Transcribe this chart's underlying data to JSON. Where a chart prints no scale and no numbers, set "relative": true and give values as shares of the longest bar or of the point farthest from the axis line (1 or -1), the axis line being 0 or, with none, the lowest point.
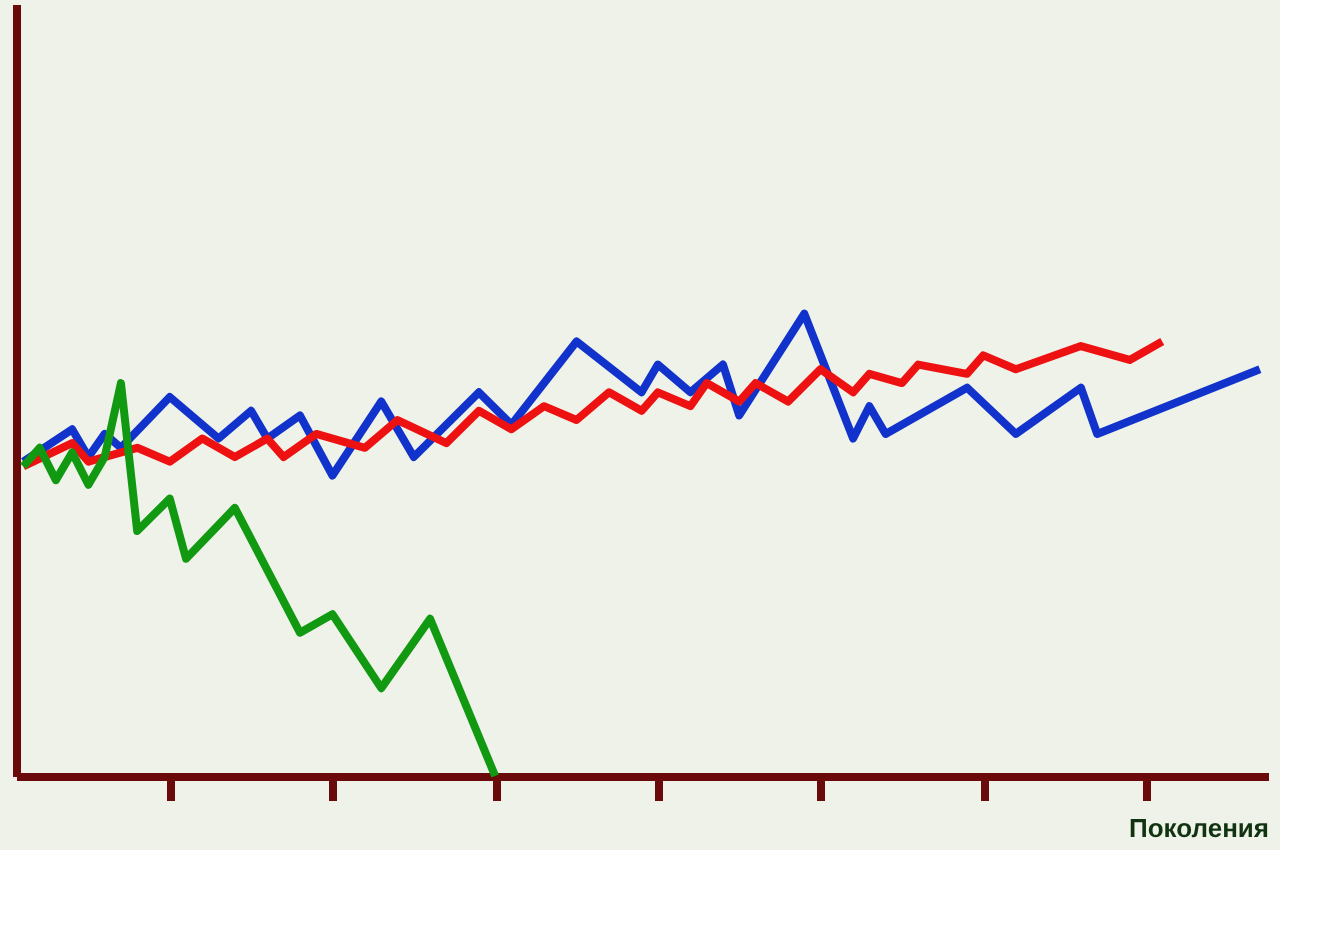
{
  "chart_data": {
    "type": "line",
    "relative": true,
    "xlabel": "Поколения",
    "grid": false,
    "marker": "none",
    "line_style": "solid",
    "tick_labels": false,
    "categories": [
      null,
      null,
      null,
      null,
      null,
      null,
      null,
      null,
      null,
      null,
      null,
      null,
      null,
      null,
      null,
      null,
      null,
      null,
      null,
      null,
      null,
      null,
      null,
      null,
      null,
      null,
      null,
      null,
      null,
      null,
      null,
      null,
      null,
      null,
      null,
      null,
      null,
      null,
      null,
      null,
      null,
      null,
      null,
      null,
      null,
      null,
      null,
      null,
      null,
      null,
      null,
      null,
      null,
      null,
      null,
      null,
      null,
      null,
      null,
      null,
      null,
      null,
      null,
      null,
      null,
      null,
      null,
      null,
      null,
      null,
      null,
      null,
      null,
      null,
      null,
      null,
      null
    ],
    "series": [
      {
        "color": "#1133cc",
        "values": [
          0.68,
          null,
          null,
          0.75,
          0.69,
          0.74,
          0.71,
          null,
          null,
          0.82,
          null,
          null,
          0.73,
          null,
          0.79,
          0.73,
          null,
          0.78,
          null,
          0.65,
          null,
          null,
          0.81,
          null,
          0.69,
          null,
          null,
          null,
          0.83,
          null,
          0.76,
          null,
          null,
          null,
          0.94,
          null,
          null,
          null,
          0.83,
          0.89,
          null,
          0.83,
          null,
          0.89,
          0.78,
          null,
          null,
          null,
          1.0,
          null,
          null,
          0.73,
          0.8,
          0.74,
          null,
          null,
          null,
          null,
          0.84,
          null,
          null,
          0.74,
          null,
          null,
          null,
          0.84,
          0.74,
          null,
          null,
          null,
          null,
          null,
          null,
          null,
          null,
          null,
          0.88
        ]
      },
      {
        "color": "#ee1111",
        "values": [
          0.67,
          null,
          null,
          0.72,
          0.68,
          null,
          null,
          0.71,
          null,
          0.68,
          null,
          0.73,
          null,
          0.69,
          null,
          0.73,
          0.69,
          null,
          0.74,
          null,
          null,
          0.71,
          null,
          0.77,
          null,
          null,
          0.72,
          null,
          0.79,
          null,
          0.75,
          null,
          0.8,
          null,
          0.77,
          null,
          0.83,
          null,
          0.79,
          0.83,
          null,
          0.8,
          0.85,
          null,
          0.81,
          0.85,
          null,
          0.81,
          null,
          0.88,
          null,
          0.83,
          0.87,
          null,
          0.85,
          0.89,
          null,
          null,
          0.87,
          0.91,
          null,
          0.88,
          null,
          null,
          null,
          0.93,
          null,
          null,
          0.9,
          null,
          0.94,
          null,
          null,
          null,
          null,
          null,
          null
        ]
      },
      {
        "color": "#119911",
        "values": [
          0.67,
          0.71,
          0.64,
          0.7,
          0.63,
          0.69,
          0.85,
          0.53,
          null,
          0.6,
          0.47,
          null,
          null,
          0.58,
          null,
          null,
          null,
          0.31,
          null,
          0.35,
          null,
          null,
          0.19,
          null,
          null,
          0.34,
          null,
          null,
          null,
          0.0,
          null,
          null,
          null,
          null,
          null,
          null,
          null,
          null,
          null,
          null,
          null,
          null,
          null,
          null,
          null,
          null,
          null,
          null,
          null,
          null,
          null,
          null,
          null,
          null,
          null,
          null,
          null,
          null,
          null,
          null,
          null,
          null,
          null,
          null,
          null,
          null,
          null,
          null,
          null,
          null,
          null,
          null,
          null,
          null,
          null,
          null,
          null
        ]
      }
    ]
  }
}
